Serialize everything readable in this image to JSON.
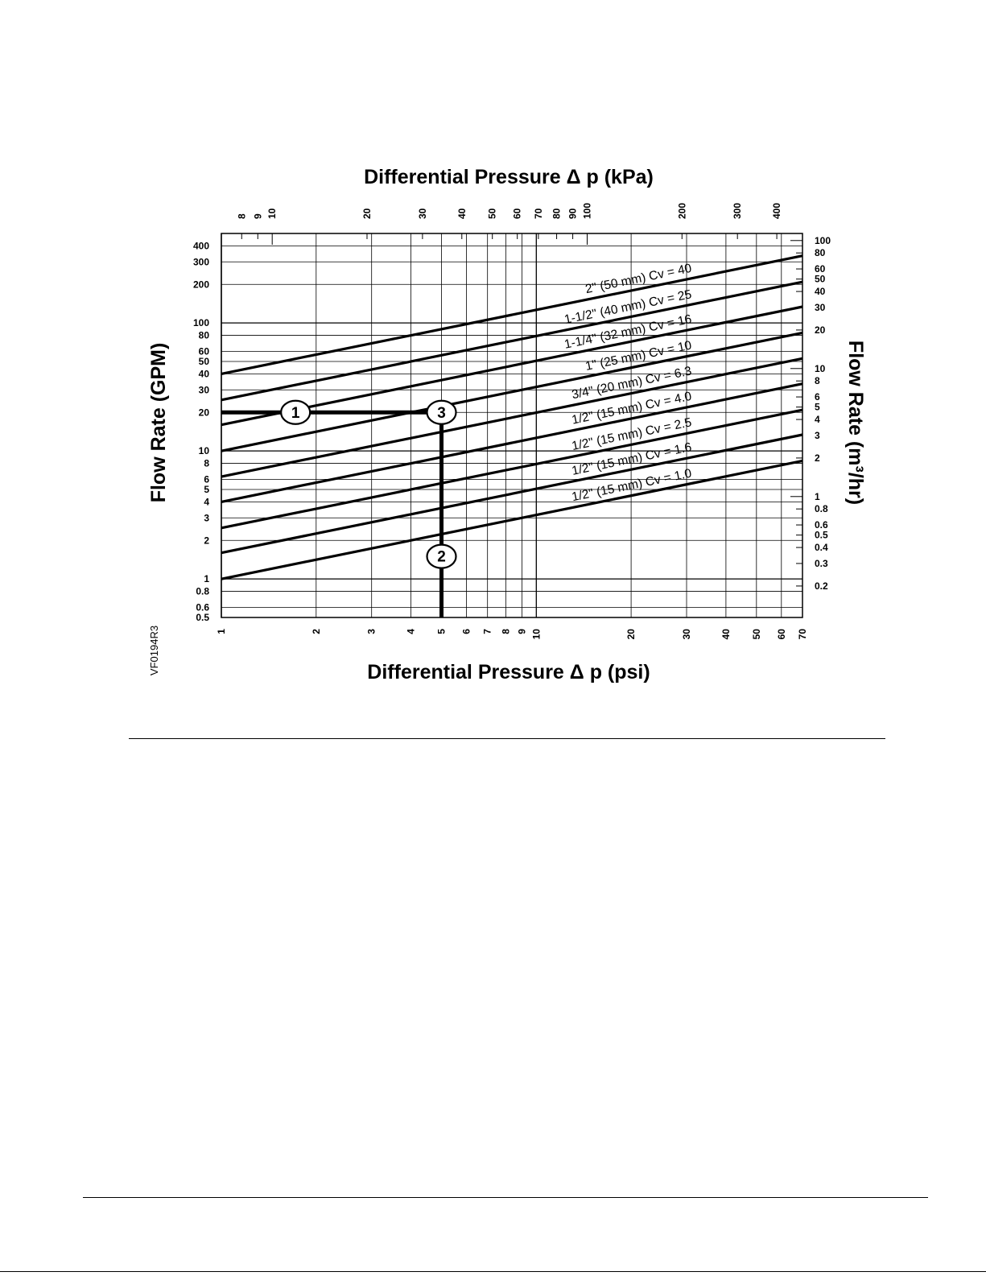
{
  "chart_data": {
    "type": "line",
    "title": "Differential Pressure Δ p (kPa)",
    "xlabel": "Differential Pressure Δ p (psi)",
    "ylabel": "Flow Rate (GPM)",
    "ylabel_right": "Flow Rate (m³/hr)",
    "figure_code": "VF0194R3",
    "x_scale": "log",
    "y_scale": "log",
    "xlim": [
      1,
      70
    ],
    "ylim": [
      0.5,
      500
    ],
    "grid": true,
    "x_ticks": [
      1,
      2,
      3,
      4,
      5,
      6,
      7,
      8,
      9,
      10,
      20,
      30,
      40,
      50,
      60,
      70
    ],
    "x_ticks_top_kpa": [
      8,
      9,
      10,
      20,
      30,
      40,
      50,
      60,
      70,
      80,
      90,
      100,
      200,
      300,
      400
    ],
    "y_ticks": [
      400,
      300,
      200,
      100,
      80,
      60,
      50,
      40,
      30,
      20,
      10,
      8,
      6,
      5,
      4,
      3,
      2,
      1,
      0.8,
      0.6,
      0.5
    ],
    "y_ticks_right_m3hr": [
      100,
      80,
      60,
      50,
      40,
      30,
      20,
      10,
      8,
      6,
      5,
      4,
      3,
      2,
      1,
      0.8,
      0.6,
      0.5,
      0.4,
      0.3,
      0.2
    ],
    "series": [
      {
        "name": "2\" (50 mm) Cv = 40",
        "cv": 40
      },
      {
        "name": "1-1/2\" (40 mm) Cv = 25",
        "cv": 25
      },
      {
        "name": "1-1/4\" (32 mm) Cv = 16",
        "cv": 16
      },
      {
        "name": "1\" (25 mm) Cv = 10",
        "cv": 10
      },
      {
        "name": "3/4\" (20 mm) Cv = 6.3",
        "cv": 6.3
      },
      {
        "name": "1/2\" (15 mm) Cv = 4.0",
        "cv": 4.0
      },
      {
        "name": "1/2\" (15 mm) Cv = 2.5",
        "cv": 2.5
      },
      {
        "name": "1/2\" (15 mm) Cv = 1.6",
        "cv": 1.6
      },
      {
        "name": "1/2\" (15 mm) Cv = 1.0",
        "cv": 1.0
      }
    ],
    "series_x": [
      1,
      70
    ],
    "annotations": [
      {
        "label": "1",
        "x": 1.72,
        "y": 20
      },
      {
        "label": "2",
        "x": 5,
        "y": 1.5
      },
      {
        "label": "3",
        "x": 5,
        "y": 20
      }
    ],
    "guide_flow_gpm": 20,
    "guide_pressure_psi": 5
  }
}
